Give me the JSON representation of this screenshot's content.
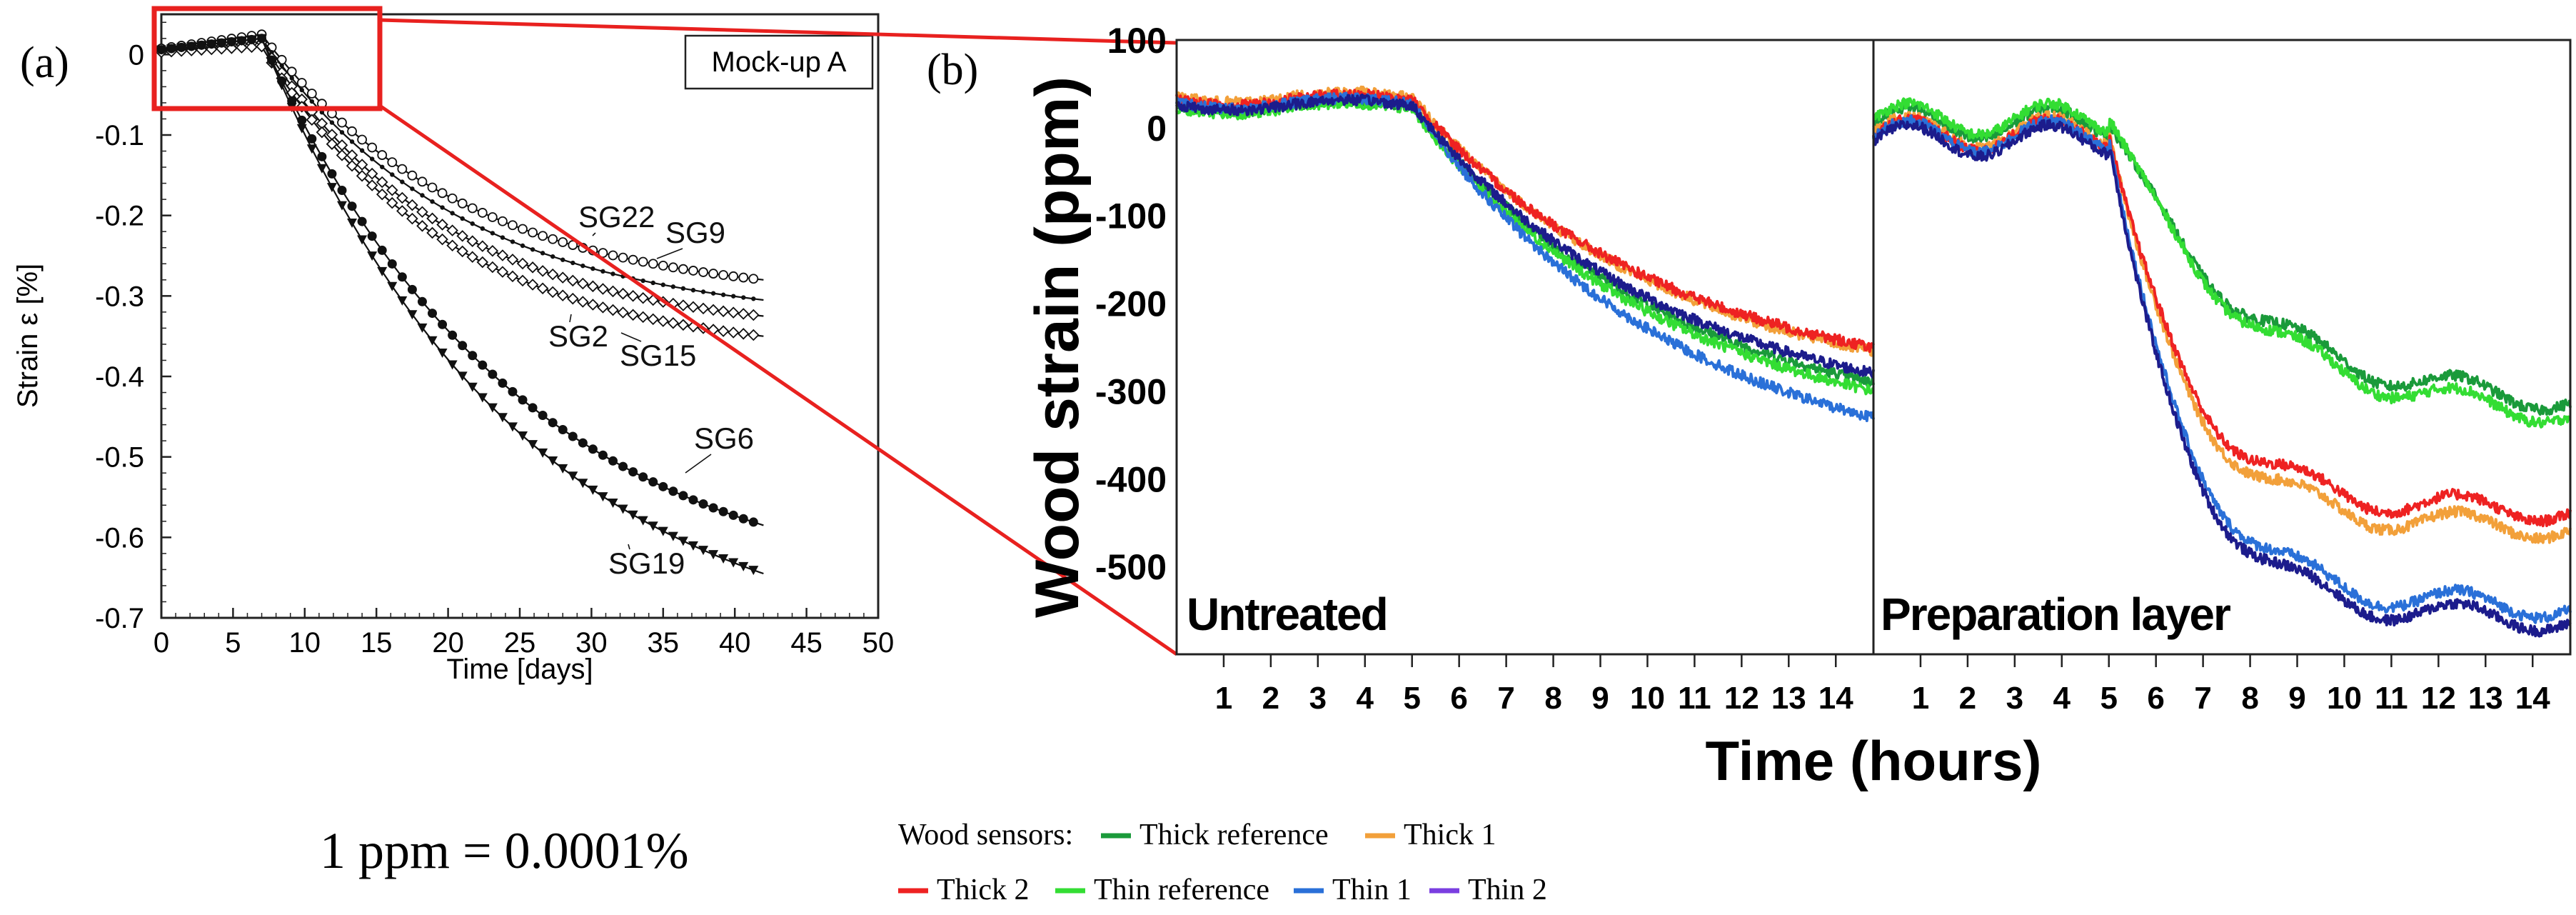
{
  "panel_a_label": "(a)",
  "panel_b_label": "(b)",
  "conversion_note": "1 ppm = 0.0001%",
  "colors": {
    "red_box": "#e8211f",
    "thick_reference": "#1a9a3a",
    "thick_1": "#f2a03a",
    "thick_2": "#ee2222",
    "thin_reference": "#33dd33",
    "thin_1": "#2a70d8",
    "thin_2": "#7a3ee0",
    "navy": "#1c1c8c"
  },
  "legend": {
    "prefix": "Wood sensors:",
    "items": [
      {
        "label": "Thick reference",
        "color": "#1a9a3a"
      },
      {
        "label": "Thick 1",
        "color": "#f2a03a"
      },
      {
        "label": "Thick 2",
        "color": "#ee2222"
      },
      {
        "label": "Thin reference",
        "color": "#33dd33"
      },
      {
        "label": "Thin 1",
        "color": "#2a70d8"
      },
      {
        "label": "Thin 2",
        "color": "#7a3ee0"
      }
    ]
  },
  "chart_data": [
    {
      "type": "line",
      "id": "panel-a",
      "title": "Mock-up A",
      "xlabel": "Time [days]",
      "ylabel": "Strain ε [%]",
      "xlim": [
        0,
        50
      ],
      "ylim": [
        -0.7,
        0.05
      ],
      "xticks": [
        0,
        5,
        10,
        15,
        20,
        25,
        30,
        35,
        40,
        45,
        50
      ],
      "yticks": [
        0,
        -0.1,
        -0.2,
        -0.3,
        -0.4,
        -0.5,
        -0.6,
        -0.7
      ],
      "ytick_labels": [
        "0",
        "-0.1",
        "-0.2",
        "-0.3",
        "-0.4",
        "-0.5",
        "-0.6",
        "-0.7"
      ],
      "series": [
        {
          "name": "SG22",
          "marker": "open-circle",
          "start": 0.025,
          "drop_day": 7,
          "end": -0.28
        },
        {
          "name": "SG9",
          "marker": "dot",
          "start": 0.02,
          "drop_day": 7,
          "end": -0.305
        },
        {
          "name": "SG2",
          "marker": "open-diamond",
          "start": 0.015,
          "drop_day": 7,
          "end": -0.325
        },
        {
          "name": "SG15",
          "marker": "open-diamond",
          "start": 0.01,
          "drop_day": 7,
          "end": -0.35
        },
        {
          "name": "SG6",
          "marker": "filled-circle",
          "start": 0.02,
          "drop_day": 7,
          "end": -0.585
        },
        {
          "name": "SG19",
          "marker": "filled-triangle",
          "start": 0.02,
          "drop_day": 7,
          "end": -0.645
        }
      ]
    },
    {
      "type": "line",
      "id": "panel-b",
      "ylabel": "Wood strain (ppm)",
      "xlabel": "Time (hours)",
      "ylim": [
        -600,
        100
      ],
      "yticks": [
        100,
        0,
        -100,
        -200,
        -300,
        -400,
        -500
      ],
      "ytick_labels": [
        "100",
        "0",
        "-100",
        "-200",
        "-300",
        "-400",
        "-500"
      ],
      "xticks": [
        1,
        2,
        3,
        4,
        5,
        6,
        7,
        8,
        9,
        10,
        11,
        12,
        13,
        14
      ],
      "xtick_labels": [
        "1",
        "2",
        "3",
        "4",
        "5",
        "6",
        "7",
        "8",
        "9",
        "10",
        "11",
        "12",
        "13",
        "14"
      ],
      "xlim": [
        0,
        14.8
      ],
      "subpanels": [
        {
          "label": "Untreated",
          "start_values": {
            "Thick reference": 25,
            "Thick 1": 35,
            "Thick 2": 32,
            "Thin reference": 22,
            "Thin 1": 28,
            "Thin 2": 26
          },
          "end_values": {
            "Thick reference": -290,
            "Thick 1": -255,
            "Thick 2": -250,
            "Thin reference": -300,
            "Thin 1": -330,
            "Thin 2": -280
          }
        },
        {
          "label": "Preparation layer",
          "start_values": {
            "Thick reference": 5,
            "Thick 1": -5,
            "Thick 2": -8,
            "Thin reference": 10,
            "Thin 1": -10,
            "Thin 2": -15
          },
          "end_values": {
            "Thick reference": -310,
            "Thick 1": -455,
            "Thick 2": -435,
            "Thin reference": -325,
            "Thin 1": -545,
            "Thin 2": -560
          }
        }
      ]
    }
  ]
}
